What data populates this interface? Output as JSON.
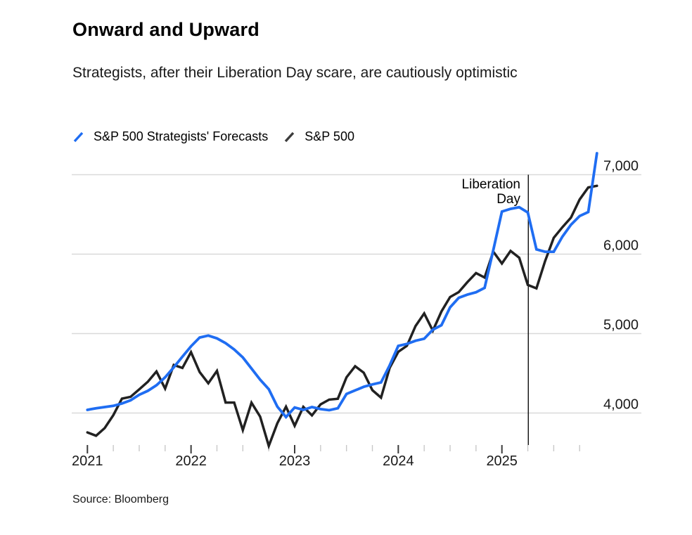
{
  "header": {
    "title": "Onward and Upward",
    "subtitle": "Strategists, after their Liberation Day scare, are cautiously optimistic"
  },
  "legend": {
    "items": [
      {
        "label": "S&P 500 Strategists' Forecasts",
        "color": "#1f6df2"
      },
      {
        "label": "S&P 500",
        "color": "#3d3d3d"
      }
    ]
  },
  "chart_data": {
    "type": "line",
    "title": "Onward and Upward",
    "x_start_year": 2021.0,
    "x_step_months": 1,
    "x_axis": {
      "major_labels": [
        "2021",
        "2022",
        "2023",
        "2024",
        "2025"
      ],
      "major_years": [
        2021,
        2022,
        2023,
        2024,
        2025
      ],
      "minor_step_years": 0.25,
      "minor_start": 2021.0,
      "minor_end": 2025.75
    },
    "y_axis": {
      "range": [
        3580,
        7300
      ],
      "gridlines": true,
      "ticks": [
        {
          "value": 4000,
          "label": "4,000"
        },
        {
          "value": 5000,
          "label": "5,000"
        },
        {
          "value": 6000,
          "label": "6,000"
        },
        {
          "value": 7000,
          "label": "7,000"
        }
      ]
    },
    "legend_position": "top-left",
    "series": [
      {
        "name": "S&P 500",
        "color": "#212121",
        "stroke_width": 3.5,
        "values": [
          3756,
          3714,
          3811,
          3973,
          4181,
          4204,
          4298,
          4395,
          4523,
          4308,
          4605,
          4567,
          4766,
          4516,
          4374,
          4530,
          4132,
          4132,
          3785,
          4130,
          3955,
          3586,
          3872,
          4080,
          3840,
          4077,
          3970,
          4109,
          4169,
          4180,
          4450,
          4589,
          4508,
          4288,
          4194,
          4568,
          4770,
          4846,
          5096,
          5254,
          5036,
          5278,
          5460,
          5522,
          5648,
          5762,
          5705,
          6032,
          5882,
          6041,
          5955,
          5612,
          5569,
          5912,
          6205,
          6339,
          6460,
          6688,
          6840,
          6860
        ]
      },
      {
        "name": "S&P 500 Strategists' Forecasts",
        "color": "#1f6df2",
        "stroke_width": 3.8,
        "values": [
          4040,
          4060,
          4075,
          4090,
          4120,
          4160,
          4230,
          4280,
          4350,
          4450,
          4575,
          4710,
          4840,
          4950,
          4975,
          4940,
          4880,
          4800,
          4700,
          4560,
          4420,
          4300,
          4080,
          3950,
          4070,
          4040,
          4075,
          4050,
          4035,
          4060,
          4240,
          4285,
          4330,
          4360,
          4385,
          4600,
          4845,
          4870,
          4910,
          4935,
          5050,
          5105,
          5330,
          5450,
          5490,
          5520,
          5575,
          6050,
          6535,
          6570,
          6590,
          6525,
          6060,
          6030,
          6030,
          6220,
          6370,
          6480,
          6530,
          7270
        ]
      }
    ],
    "annotation": {
      "line1": "Liberation",
      "line2": "Day",
      "x_year": 2025.255
    }
  },
  "source": "Source: Bloomberg",
  "colors": {
    "background": "#ffffff",
    "gridline": "#d9d9d9",
    "major_tick": "#3c3c3c",
    "minor_tick": "#c8c8c8",
    "annotation_line": "#1a1a1a"
  }
}
